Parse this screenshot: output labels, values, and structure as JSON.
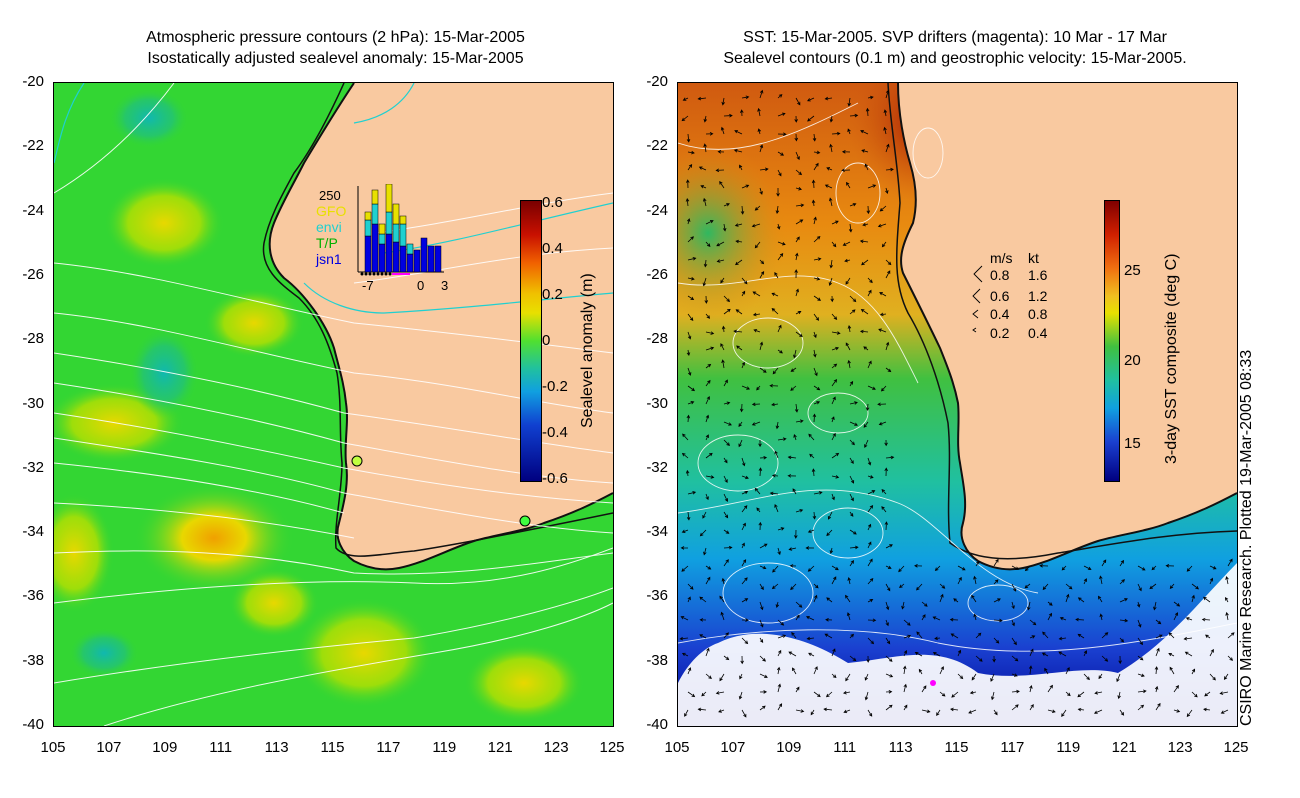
{
  "left_panel": {
    "title_line1": "Atmospheric pressure contours (2 hPa): 15-Mar-2005",
    "title_line2": "Isostatically adjusted sealevel anomaly: 15-Mar-2005",
    "colorbar_label": "Sealevel anomaly (m)",
    "colorbar_ticks": [
      "0.6",
      "0.4",
      "0.2",
      "0",
      "-0.2",
      "-0.4",
      "-0.6"
    ],
    "inset": {
      "ymax_label": "250",
      "legend": [
        {
          "label": "GFO",
          "color": "#e8e000"
        },
        {
          "label": "envi",
          "color": "#20d0d0"
        },
        {
          "label": "T/P",
          "color": "#00b000"
        },
        {
          "label": "jsn1",
          "color": "#0000e0"
        }
      ],
      "x_ticks": [
        "-7",
        "0",
        "3"
      ]
    }
  },
  "right_panel": {
    "title_line1": "SST: 15-Mar-2005. SVP drifters (magenta): 10 Mar - 17 Mar",
    "title_line2": "Sealevel contours (0.1 m) and geostrophic velocity: 15-Mar-2005.",
    "colorbar_label": "3-day SST composite (deg C)",
    "colorbar_ticks": [
      "25",
      "20",
      "15"
    ],
    "velocity_legend": {
      "header_ms": "m/s",
      "header_kt": "kt",
      "rows": [
        {
          "ms": "0.8",
          "kt": "1.6"
        },
        {
          "ms": "0.6",
          "kt": "1.2"
        },
        {
          "ms": "0.4",
          "kt": "0.8"
        },
        {
          "ms": "0.2",
          "kt": "0.4"
        }
      ]
    }
  },
  "axes": {
    "y_ticks": [
      "-20",
      "-22",
      "-24",
      "-26",
      "-28",
      "-30",
      "-32",
      "-34",
      "-36",
      "-38",
      "-40"
    ],
    "x_ticks": [
      "105",
      "107",
      "109",
      "111",
      "113",
      "115",
      "117",
      "119",
      "121",
      "123",
      "125"
    ]
  },
  "credit": "CSIRO Marine Research. Plotted 19-Mar-2005 08:33",
  "colors": {
    "land": "#f9c9a0",
    "ocean_left": "#33d633",
    "sst_warm": "#e07a10",
    "sst_cold": "#1a40d0"
  }
}
